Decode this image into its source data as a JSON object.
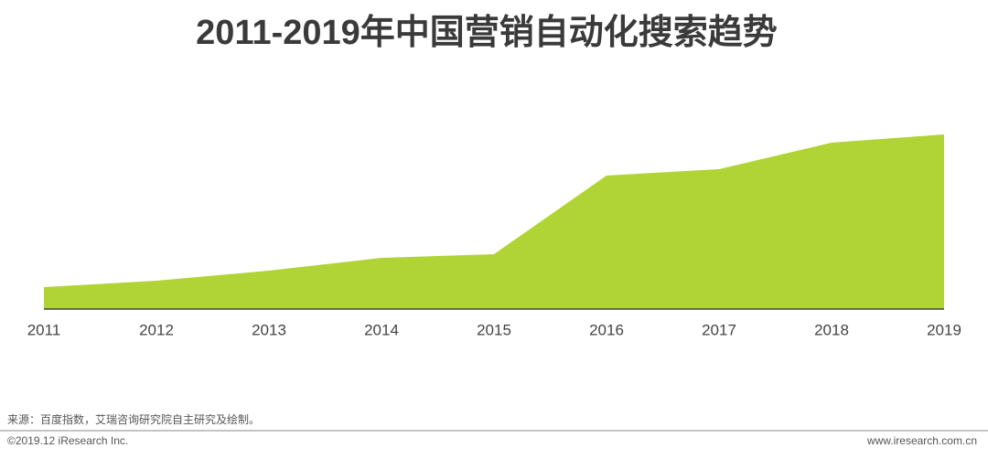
{
  "chart_data": {
    "type": "area",
    "title": "2011-2019年中国营销自动化搜索趋势",
    "categories": [
      "2011",
      "2012",
      "2013",
      "2014",
      "2015",
      "2016",
      "2017",
      "2018",
      "2019"
    ],
    "values": [
      24,
      31,
      42,
      56,
      60,
      146,
      153,
      182,
      191
    ],
    "color": "#b0d335",
    "ylim": [
      0,
      200
    ]
  },
  "source": "来源：百度指数，艾瑞咨询研究院自主研究及绘制。",
  "copyright": "©2019.12 iResearch Inc.",
  "website": "www.iresearch.com.cn"
}
